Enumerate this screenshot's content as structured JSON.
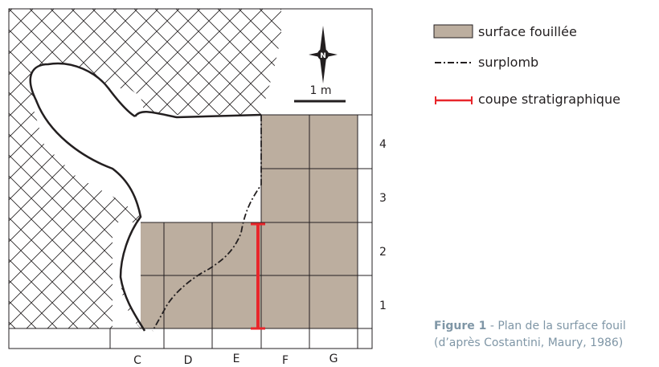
{
  "compass": {
    "north_letter": "N",
    "icon": "compass-rose-icon"
  },
  "scale_bar": {
    "label": "1 m"
  },
  "legend": {
    "excavated": "surface fouillée",
    "overhang": "surplomb",
    "section": "coupe stratigraphique"
  },
  "grid": {
    "columns": [
      "C",
      "D",
      "E",
      "F",
      "G"
    ],
    "rows": [
      "4",
      "3",
      "2",
      "1"
    ]
  },
  "caption": {
    "label": "Figure 1",
    "text": " - Plan de la surface fouil",
    "source": "(d’après Costantini, Maury, 1986)"
  },
  "colors": {
    "excavated_fill": "#bcae9f",
    "section_line": "#e8262b",
    "outline": "#231f20",
    "caption": "#7f96a6"
  }
}
